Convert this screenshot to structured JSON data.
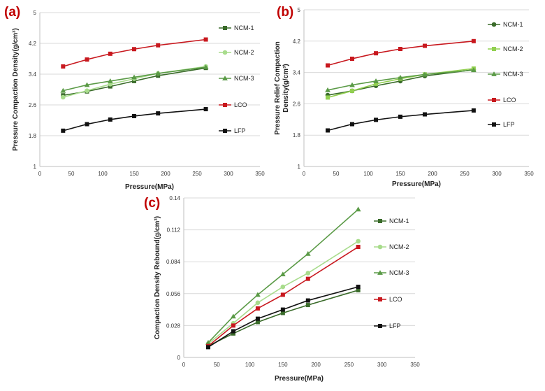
{
  "chart_data": [
    {
      "panel": "(a)",
      "type": "line",
      "xlabel": "Pressure(MPa)",
      "ylabel": "Pressure Compaction Density(g/cm³)",
      "ylabel_lines": [
        "Pressure Compaction Density(g/cm³)"
      ],
      "xlim": [
        0,
        350
      ],
      "ylim": [
        1,
        5
      ],
      "xticks": [
        "0",
        "50",
        "100",
        "150",
        "200",
        "250",
        "300",
        "350"
      ],
      "yticks": [
        "1",
        "1.8",
        "2.6",
        "3.4",
        "4.2",
        "5"
      ],
      "grid": "horizontal",
      "legend_position": "right",
      "series": [
        {
          "name": "NCM-1",
          "color": "#3a6b2a",
          "marker": "square",
          "x": [
            37,
            75,
            112,
            150,
            188,
            264
          ],
          "y": [
            2.85,
            2.95,
            3.08,
            3.22,
            3.36,
            3.56
          ]
        },
        {
          "name": "NCM-2",
          "color": "#a8dc8c",
          "marker": "circle",
          "x": [
            37,
            75,
            112,
            150,
            188,
            264
          ],
          "y": [
            2.8,
            2.97,
            3.14,
            3.28,
            3.42,
            3.6
          ]
        },
        {
          "name": "NCM-3",
          "color": "#5a9a46",
          "marker": "triangle",
          "x": [
            37,
            75,
            112,
            150,
            188,
            264
          ],
          "y": [
            2.97,
            3.12,
            3.22,
            3.32,
            3.42,
            3.58
          ]
        },
        {
          "name": "LCO",
          "color": "#c8181e",
          "marker": "square",
          "x": [
            37,
            75,
            112,
            150,
            188,
            264
          ],
          "y": [
            3.6,
            3.78,
            3.93,
            4.05,
            4.15,
            4.3
          ]
        },
        {
          "name": "LFP",
          "color": "#111111",
          "marker": "square",
          "x": [
            37,
            75,
            112,
            150,
            188,
            264
          ],
          "y": [
            1.93,
            2.1,
            2.22,
            2.31,
            2.38,
            2.49
          ]
        }
      ]
    },
    {
      "panel": "(b)",
      "type": "line",
      "xlabel": "Pressure(MPa)",
      "ylabel": "Pressure Relief Compaction Density(g/cm³)",
      "ylabel_lines": [
        "Pressure Relief Compaction",
        "Density(g/cm³)"
      ],
      "xlim": [
        0,
        350
      ],
      "ylim": [
        1,
        5
      ],
      "xticks": [
        "0",
        "50",
        "100",
        "150",
        "200",
        "250",
        "300",
        "350"
      ],
      "yticks": [
        "1",
        "1.8",
        "2.6",
        "3.4",
        "4.2",
        "5"
      ],
      "grid": "horizontal",
      "legend_position": "right",
      "series": [
        {
          "name": "NCM-1",
          "color": "#3a6b2a",
          "marker": "circle",
          "x": [
            37,
            75,
            112,
            150,
            188,
            264
          ],
          "y": [
            2.82,
            2.93,
            3.06,
            3.18,
            3.31,
            3.47
          ]
        },
        {
          "name": "NCM-2",
          "color": "#92d050",
          "marker": "square",
          "x": [
            37,
            75,
            112,
            150,
            188,
            264
          ],
          "y": [
            2.76,
            2.93,
            3.11,
            3.24,
            3.35,
            3.5
          ]
        },
        {
          "name": "NCM-3",
          "color": "#5a9a46",
          "marker": "triangle",
          "x": [
            37,
            75,
            112,
            150,
            188,
            264
          ],
          "y": [
            2.95,
            3.08,
            3.18,
            3.27,
            3.35,
            3.46
          ]
        },
        {
          "name": "LCO",
          "color": "#c8181e",
          "marker": "square",
          "x": [
            37,
            75,
            112,
            150,
            188,
            264
          ],
          "y": [
            3.58,
            3.75,
            3.89,
            4.0,
            4.08,
            4.2
          ]
        },
        {
          "name": "LFP",
          "color": "#111111",
          "marker": "square",
          "x": [
            37,
            75,
            112,
            150,
            188,
            264
          ],
          "y": [
            1.92,
            2.08,
            2.19,
            2.27,
            2.33,
            2.43
          ]
        }
      ]
    },
    {
      "panel": "(c)",
      "type": "line",
      "xlabel": "Pressure(MPa)",
      "ylabel": "Compaction Density Rebound(g/cm³)",
      "ylabel_lines": [
        "Compaction Density Rebound(g/cm³)"
      ],
      "xlim": [
        0,
        350
      ],
      "ylim": [
        0,
        0.14
      ],
      "xticks": [
        "0",
        "50",
        "100",
        "150",
        "200",
        "250",
        "300",
        "350"
      ],
      "yticks": [
        "0",
        "0.028",
        "0.056",
        "0.084",
        "0.112",
        "0.14"
      ],
      "grid": "horizontal",
      "legend_position": "right",
      "series": [
        {
          "name": "NCM-1",
          "color": "#3a6b2a",
          "marker": "square",
          "x": [
            37,
            75,
            112,
            150,
            188,
            264
          ],
          "y": [
            0.01,
            0.021,
            0.031,
            0.039,
            0.046,
            0.059
          ]
        },
        {
          "name": "NCM-2",
          "color": "#a8dc8c",
          "marker": "circle",
          "x": [
            37,
            75,
            112,
            150,
            188,
            264
          ],
          "y": [
            0.012,
            0.03,
            0.048,
            0.062,
            0.074,
            0.102
          ]
        },
        {
          "name": "NCM-3",
          "color": "#5a9a46",
          "marker": "triangle",
          "x": [
            37,
            75,
            112,
            150,
            188,
            264
          ],
          "y": [
            0.013,
            0.036,
            0.055,
            0.073,
            0.091,
            0.13
          ]
        },
        {
          "name": "LCO",
          "color": "#c8181e",
          "marker": "square",
          "x": [
            37,
            75,
            112,
            150,
            188,
            264
          ],
          "y": [
            0.01,
            0.028,
            0.043,
            0.055,
            0.069,
            0.097
          ]
        },
        {
          "name": "LFP",
          "color": "#111111",
          "marker": "square",
          "x": [
            37,
            75,
            112,
            150,
            188,
            264
          ],
          "y": [
            0.009,
            0.023,
            0.034,
            0.042,
            0.05,
            0.062
          ]
        }
      ]
    }
  ]
}
